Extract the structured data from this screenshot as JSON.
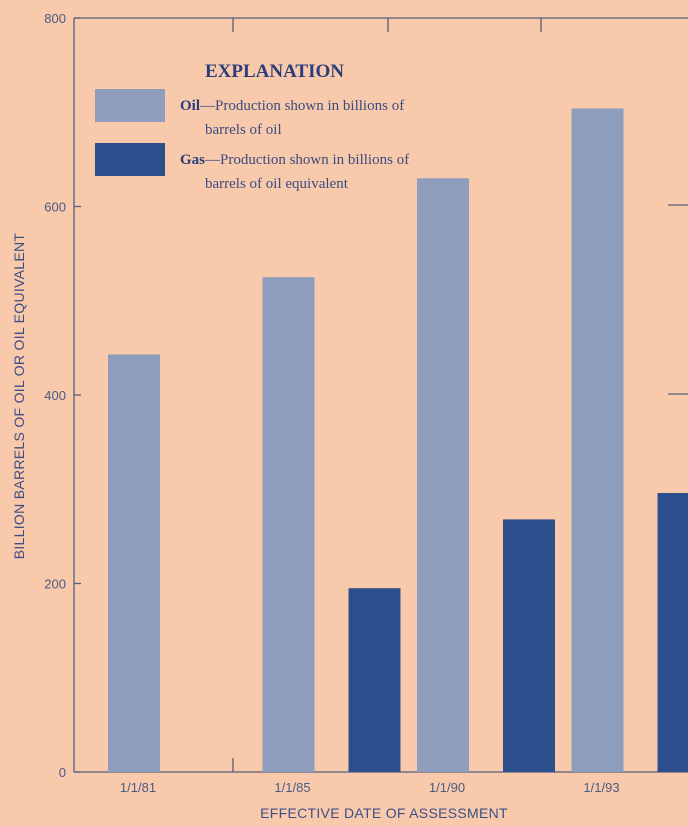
{
  "chart_data": {
    "type": "bar",
    "categories": [
      "1/1/81",
      "1/1/85",
      "1/1/90",
      "1/1/93"
    ],
    "series": [
      {
        "name": "Oil",
        "values": [
          443,
          525,
          630,
          704
        ],
        "color": "#8e9dbb"
      },
      {
        "name": "Gas",
        "values": [
          null,
          195,
          268,
          296
        ],
        "color": "#2d4e8c"
      }
    ],
    "xlabel": "EFFECTIVE DATE OF ASSESSMENT",
    "ylabel": "BILLION BARRELS OF OIL OR OIL EQUIVALENT",
    "ylim": [
      0,
      800
    ],
    "yticks": [
      "0",
      "200",
      "400",
      "600",
      "800"
    ],
    "grid": false,
    "legend": {
      "title": "EXPLANATION",
      "placement": "top-left",
      "entries": [
        {
          "name": "Oil",
          "desc_line1": "—Production shown in billions of",
          "desc_line2": "barrels of oil"
        },
        {
          "name": "Gas",
          "desc_line1": "—Production shown in billions of",
          "desc_line2": "barrels of oil equivalent"
        }
      ]
    }
  }
}
